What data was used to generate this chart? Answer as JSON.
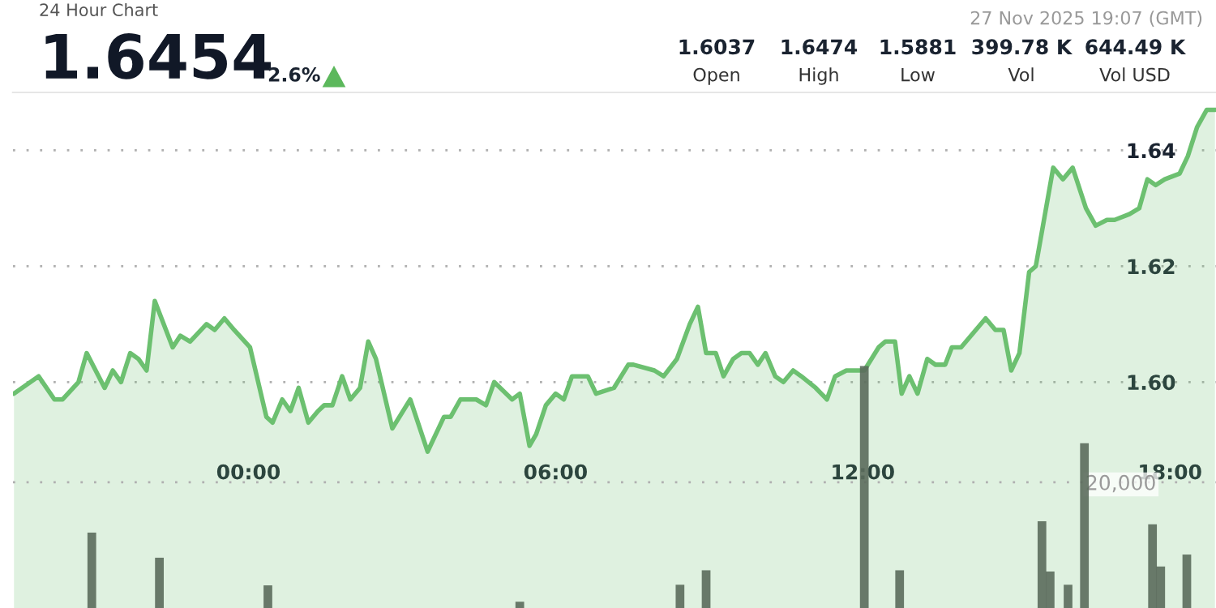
{
  "chart_data": {
    "type": "area",
    "title": "24 Hour Chart",
    "annotations": [
      "1.6454",
      "2.6%",
      "1.6037",
      "Open",
      "1.6474",
      "High",
      "1.5881",
      "Low",
      "399.78 K",
      "Vol",
      "644.49 K",
      "Vol USD",
      "27 Nov 2025 19:07 (GMT)"
    ],
    "series": [
      {
        "color": "#6cc070",
        "x": [
          -4.58,
          -4.1,
          -3.79,
          -3.63,
          -3.32,
          -3.16,
          -2.81,
          -2.65,
          -2.49,
          -2.31,
          -2.15,
          -1.99,
          -1.83,
          -1.48,
          -1.33,
          -1.14,
          -0.82,
          -0.66,
          -0.47,
          -0.28,
          0.03,
          0.35,
          0.47,
          0.66,
          0.82,
          0.98,
          1.17,
          1.36,
          1.48,
          1.64,
          1.83,
          1.99,
          2.18,
          2.34,
          2.49,
          2.81,
          3.16,
          3.5,
          3.82,
          3.95,
          4.14,
          4.45,
          4.64,
          4.8,
          5.15,
          5.3,
          5.49,
          5.62,
          5.81,
          6.0,
          6.16,
          6.32,
          6.63,
          6.79,
          7.14,
          7.42,
          7.52,
          7.93,
          8.11,
          8.37,
          8.62,
          8.78,
          8.94,
          9.13,
          9.28,
          9.47,
          9.63,
          9.79,
          9.95,
          10.1,
          10.29,
          10.45,
          10.64,
          10.8,
          11.08,
          11.3,
          11.46,
          11.68,
          12.03,
          12.31,
          12.44,
          12.63,
          12.76,
          12.91,
          13.07,
          13.26,
          13.42,
          13.61,
          13.74,
          13.92,
          14.4,
          14.59,
          14.75,
          14.9,
          15.06,
          15.25,
          15.38,
          15.72,
          15.91,
          16.1,
          16.36,
          16.55,
          16.77,
          16.92,
          17.21,
          17.4,
          17.56,
          17.72,
          17.9,
          18.19,
          18.35,
          18.53,
          18.72,
          18.88
        ],
        "values": [
          1.598,
          1.601,
          1.597,
          1.597,
          1.6,
          1.605,
          1.599,
          1.602,
          1.6,
          1.605,
          1.604,
          1.602,
          1.614,
          1.606,
          1.608,
          1.607,
          1.61,
          1.609,
          1.611,
          1.609,
          1.606,
          1.594,
          1.593,
          1.597,
          1.595,
          1.599,
          1.593,
          1.595,
          1.596,
          1.596,
          1.601,
          1.597,
          1.599,
          1.607,
          1.604,
          1.592,
          1.597,
          1.588,
          1.594,
          1.594,
          1.597,
          1.597,
          1.596,
          1.6,
          1.597,
          1.598,
          1.589,
          1.591,
          1.596,
          1.598,
          1.597,
          1.601,
          1.601,
          1.598,
          1.599,
          1.603,
          1.603,
          1.602,
          1.601,
          1.604,
          1.61,
          1.613,
          1.605,
          1.605,
          1.601,
          1.604,
          1.605,
          1.605,
          1.603,
          1.605,
          1.601,
          1.6,
          1.602,
          1.601,
          1.599,
          1.597,
          1.601,
          1.602,
          1.602,
          1.606,
          1.607,
          1.607,
          1.598,
          1.601,
          1.598,
          1.604,
          1.603,
          1.603,
          1.606,
          1.606,
          1.611,
          1.609,
          1.609,
          1.602,
          1.605,
          1.619,
          1.62,
          1.637,
          1.635,
          1.637,
          1.63,
          1.627,
          1.628,
          1.628,
          1.629,
          1.63,
          1.635,
          1.634,
          1.635,
          1.636,
          1.639,
          1.644,
          1.647,
          1.647
        ]
      },
      {
        "type": "bar",
        "axis": "y2",
        "color": "#5b6b5c",
        "x": [
          -3.06,
          -1.74,
          0.38,
          5.3,
          8.43,
          8.94,
          12.03,
          12.72,
          15.5,
          15.66,
          16.01,
          16.33,
          17.66,
          17.82,
          18.33
        ],
        "values": [
          12000,
          8000,
          3600,
          1000,
          3700,
          6000,
          38500,
          6000,
          13800,
          5800,
          3700,
          26200,
          13300,
          6600,
          8500
        ]
      }
    ],
    "xlim": [
      -4.6,
      18.9
    ],
    "xticks": [
      {
        "value": 0,
        "label": "00:00"
      },
      {
        "value": 6,
        "label": "06:00"
      },
      {
        "value": 12,
        "label": "12:00"
      },
      {
        "value": 18,
        "label": "18:00"
      }
    ],
    "ylim": [
      1.561,
      1.65
    ],
    "yticks": [
      {
        "value": 1.6,
        "label": "1.60"
      },
      {
        "value": 1.62,
        "label": "1.62"
      },
      {
        "value": 1.64,
        "label": "1.64"
      }
    ],
    "y2lim": [
      0,
      82000
    ],
    "y2ticks": [
      {
        "value": 20000,
        "label": "20,000"
      }
    ],
    "grid": "y",
    "legend": false
  }
}
